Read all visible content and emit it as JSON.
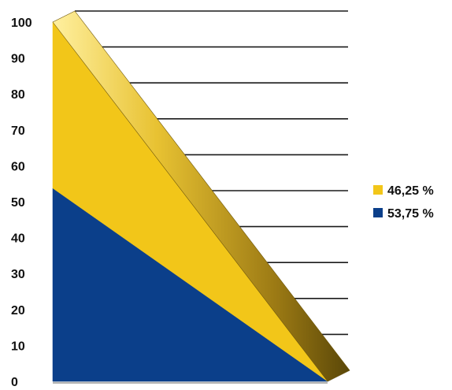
{
  "chart_data": {
    "type": "area",
    "stacked": true,
    "view": "3d",
    "title": "",
    "xlabel": "",
    "ylabel": "",
    "ylim": [
      0,
      100
    ],
    "y_ticks": [
      0,
      10,
      20,
      30,
      40,
      50,
      60,
      70,
      80,
      90,
      100
    ],
    "x": [
      0,
      1
    ],
    "grid": true,
    "legend_position": "right",
    "series": [
      {
        "name": "53,75 %",
        "values": [
          53.75,
          0
        ],
        "color": "#0b3f8a"
      },
      {
        "name": "46,25 %",
        "values": [
          46.25,
          0
        ],
        "color": "#f2c619"
      }
    ]
  }
}
